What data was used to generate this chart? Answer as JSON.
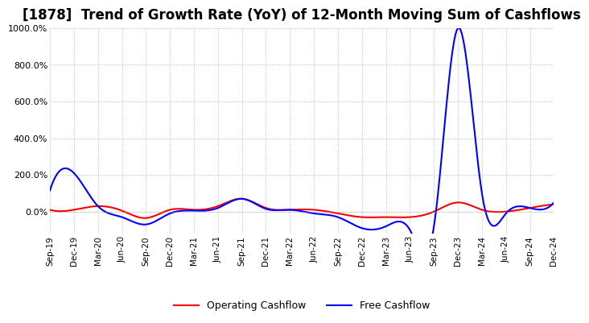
{
  "title": "[1878]  Trend of Growth Rate (YoY) of 12-Month Moving Sum of Cashflows",
  "title_fontsize": 12,
  "ylim": [
    -120,
    1000
  ],
  "yticks": [
    0,
    200,
    400,
    600,
    800,
    1000
  ],
  "ytick_labels": [
    "0.0%",
    "200.0%",
    "400.0%",
    "600.0%",
    "800.0%",
    "1000.0%"
  ],
  "background_color": "#ffffff",
  "grid_color": "#aaaaaa",
  "operating_color": "#ff0000",
  "free_color": "#0000ff",
  "x_labels": [
    "Sep-19",
    "Dec-19",
    "Mar-20",
    "Jun-20",
    "Sep-20",
    "Dec-20",
    "Mar-21",
    "Jun-21",
    "Sep-21",
    "Dec-21",
    "Mar-22",
    "Jun-22",
    "Sep-22",
    "Dec-22",
    "Mar-23",
    "Jun-23",
    "Sep-23",
    "Dec-23",
    "Mar-24",
    "Jun-24",
    "Sep-24",
    "Dec-24"
  ],
  "operating_cashflow": [
    10,
    10,
    30,
    5,
    -35,
    10,
    10,
    30,
    70,
    20,
    10,
    10,
    -10,
    -30,
    -30,
    -30,
    0,
    50,
    10,
    0,
    20,
    40
  ],
  "free_cashflow": [
    115,
    210,
    30,
    -30,
    -70,
    -10,
    5,
    20,
    70,
    15,
    10,
    -10,
    -30,
    -90,
    -80,
    -100,
    -80,
    1000,
    100,
    -10,
    20,
    50
  ]
}
